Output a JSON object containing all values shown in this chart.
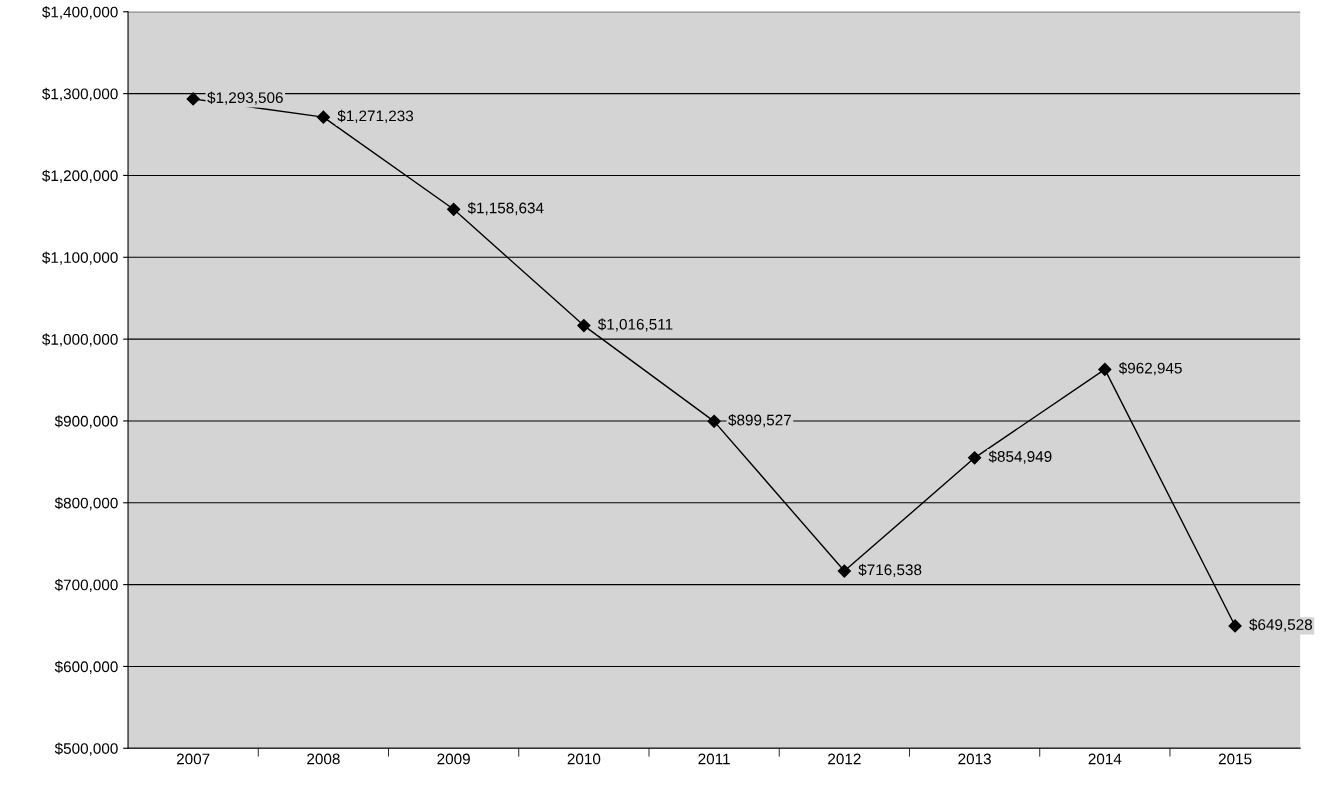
{
  "chart_data": {
    "type": "line",
    "categories": [
      "2007",
      "2008",
      "2009",
      "2010",
      "2011",
      "2012",
      "2013",
      "2014",
      "2015"
    ],
    "series": [
      {
        "color": "#000000",
        "values": [
          1293506,
          1271233,
          1158634,
          1016511,
          899527,
          716538,
          854949,
          962945,
          649528
        ],
        "value_labels": [
          "$1,293,506",
          "$1,271,233",
          "$1,158,634",
          "$1,016,511",
          "$899,527",
          "$716,538",
          "$854,949",
          "$962,945",
          "$649,528"
        ]
      }
    ],
    "ylim": [
      500000,
      1400000
    ],
    "yticks": [
      {
        "value": 500000,
        "label": "$500,000"
      },
      {
        "value": 600000,
        "label": "$600,000"
      },
      {
        "value": 700000,
        "label": "$700,000"
      },
      {
        "value": 800000,
        "label": "$800,000"
      },
      {
        "value": 900000,
        "label": "$900,000"
      },
      {
        "value": 1000000,
        "label": "$1,000,000"
      },
      {
        "value": 1100000,
        "label": "$1,100,000"
      },
      {
        "value": 1200000,
        "label": "$1,200,000"
      },
      {
        "value": 1300000,
        "label": "$1,300,000"
      },
      {
        "value": 1400000,
        "label": "$1,400,000"
      }
    ],
    "grid": "y",
    "marker": "diamond",
    "line_style": "solid",
    "legend": false
  }
}
